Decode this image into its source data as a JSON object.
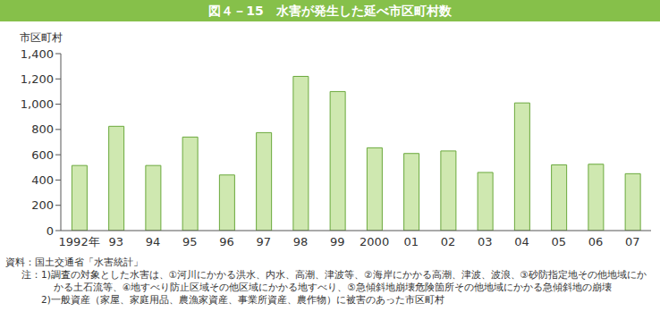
{
  "chart_data": {
    "type": "bar",
    "title": "図４－15　水害が発生した延べ市区町村数",
    "y_label": "市区町村",
    "categories": [
      "1992年",
      "93",
      "94",
      "95",
      "96",
      "97",
      "98",
      "99",
      "2000",
      "01",
      "02",
      "03",
      "04",
      "05",
      "06",
      "07"
    ],
    "values": [
      515,
      825,
      515,
      740,
      440,
      775,
      1220,
      1100,
      655,
      610,
      630,
      460,
      1010,
      520,
      525,
      450
    ],
    "color": "#cfe8b0",
    "ylim": [
      0,
      1400
    ],
    "yticks": [
      0,
      200,
      400,
      600,
      800,
      {
        "value": 1000,
        "label": "1,000"
      },
      {
        "value": 1200,
        "label": "1,200"
      },
      {
        "value": 1400,
        "label": "1,400"
      }
    ],
    "grid": false,
    "source": "資料：国土交通省「水害統計」",
    "note_label": "注：",
    "notes": [
      "1)調査の対象とした水害は、①河川にかかる洪水、内水、高潮、津波等、②海岸にかかる高潮、津波、波浪、③砂防指定地その他地域にかかる土石流等、④地すべり防止区域その他区域にかかる地すべり、⑤急傾斜地崩壊危険箇所その他地域にかかる急傾斜地の崩壊",
      "2)一般資産（家屋、家庭用品、農漁家資産、事業所資産、農作物）に被害のあった市区町村"
    ]
  }
}
